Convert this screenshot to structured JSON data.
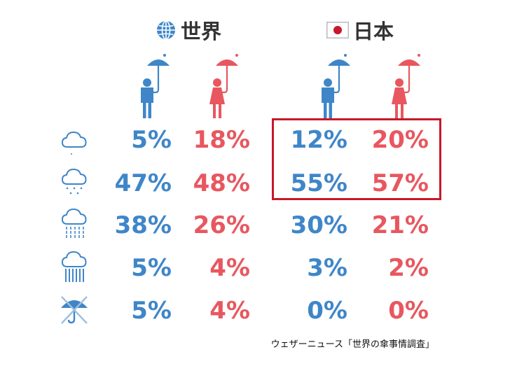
{
  "colors": {
    "male": "#3f86c8",
    "female": "#e8575f",
    "highlight": "#c8182a",
    "header_text": "#333333"
  },
  "headers": {
    "world": "世界",
    "japan": "日本"
  },
  "icons": {
    "world": "globe-icon",
    "japan": "japan-flag-icon",
    "male": "man-with-umbrella-icon",
    "female": "woman-with-umbrella-icon",
    "weather": [
      "cloud-icon",
      "light-rain-icon",
      "rain-icon",
      "heavy-rain-icon",
      "no-umbrella-icon"
    ]
  },
  "chart_data": {
    "type": "table",
    "columns": [
      {
        "group": "world",
        "gender": "male"
      },
      {
        "group": "world",
        "gender": "female"
      },
      {
        "group": "japan",
        "gender": "male"
      },
      {
        "group": "japan",
        "gender": "female"
      }
    ],
    "rows": [
      {
        "weather": "cloud-icon",
        "values": [
          "5%",
          "18%",
          "12%",
          "20%"
        ]
      },
      {
        "weather": "light-rain-icon",
        "values": [
          "47%",
          "48%",
          "55%",
          "57%"
        ]
      },
      {
        "weather": "rain-icon",
        "values": [
          "38%",
          "26%",
          "30%",
          "21%"
        ]
      },
      {
        "weather": "heavy-rain-icon",
        "values": [
          "5%",
          "4%",
          "3%",
          "2%"
        ]
      },
      {
        "weather": "no-umbrella-icon",
        "values": [
          "5%",
          "4%",
          "0%",
          "0%"
        ]
      }
    ],
    "highlighted_rows": [
      0,
      1
    ],
    "highlighted_columns": [
      2,
      3
    ]
  },
  "source": "ウェザーニュース「世界の傘事情調査」"
}
